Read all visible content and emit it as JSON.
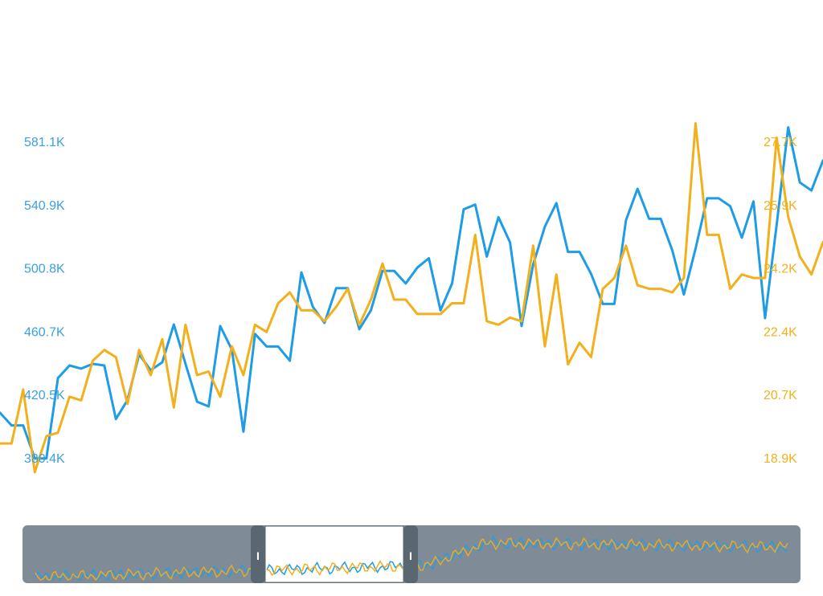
{
  "chart_data": {
    "type": "line",
    "y_left": {
      "ticks": [
        "581.1K",
        "540.9K",
        "500.8K",
        "460.7K",
        "420.5K",
        "380.4K"
      ],
      "range": [
        380.4,
        581.1
      ],
      "color": "#1e9ce6"
    },
    "y_right": {
      "ticks": [
        "27.7K",
        "25.9K",
        "24.2K",
        "22.4K",
        "20.7K",
        "18.9K"
      ],
      "range": [
        18.9,
        27.7
      ],
      "color": "#f2b01c"
    },
    "grid": false,
    "series": [
      {
        "axis": "left",
        "color": "#1e9ce6",
        "values": [
          409,
          401,
          401,
          380,
          380,
          431,
          439,
          437,
          440,
          439,
          405,
          417,
          446,
          436,
          441,
          465,
          440,
          416,
          413,
          464,
          449,
          397,
          459,
          451,
          451,
          442,
          498,
          476,
          466,
          488,
          488,
          462,
          474,
          499,
          499,
          491,
          501,
          507,
          474,
          491,
          538,
          541,
          508,
          533,
          517,
          464,
          503,
          527,
          542,
          511,
          511,
          497,
          478,
          478,
          531,
          551,
          532,
          532,
          512,
          484,
          513,
          545,
          545,
          540,
          520,
          543,
          469,
          528,
          590,
          555,
          550,
          569
        ]
      },
      {
        "axis": "right",
        "color": "#f2b01c",
        "values": [
          19.3,
          19.3,
          20.8,
          18.5,
          19.5,
          19.6,
          20.6,
          20.5,
          21.6,
          21.9,
          21.7,
          20.4,
          21.9,
          21.2,
          22.2,
          20.3,
          22.6,
          21.2,
          21.3,
          20.6,
          22.0,
          21.2,
          22.6,
          22.4,
          23.2,
          23.5,
          23.0,
          23.0,
          22.7,
          23.1,
          23.6,
          22.6,
          23.3,
          24.3,
          23.3,
          23.3,
          22.9,
          22.9,
          22.9,
          23.2,
          23.2,
          25.1,
          22.7,
          22.6,
          22.8,
          22.7,
          24.8,
          22.0,
          24.0,
          21.5,
          22.1,
          21.7,
          23.6,
          23.9,
          24.8,
          23.7,
          23.6,
          23.6,
          23.5,
          23.9,
          28.2,
          25.1,
          25.1,
          23.6,
          24.0,
          23.9,
          23.9,
          27.8,
          25.6,
          24.5,
          24.0,
          24.9
        ]
      }
    ]
  },
  "navigator": {
    "background_color": "#7f8c98",
    "window_color": "#ffffff",
    "handle_color": "#5a6670",
    "handle_left_label": "I",
    "handle_right_label": "I",
    "window_start": 0.3,
    "window_end": 0.46
  }
}
